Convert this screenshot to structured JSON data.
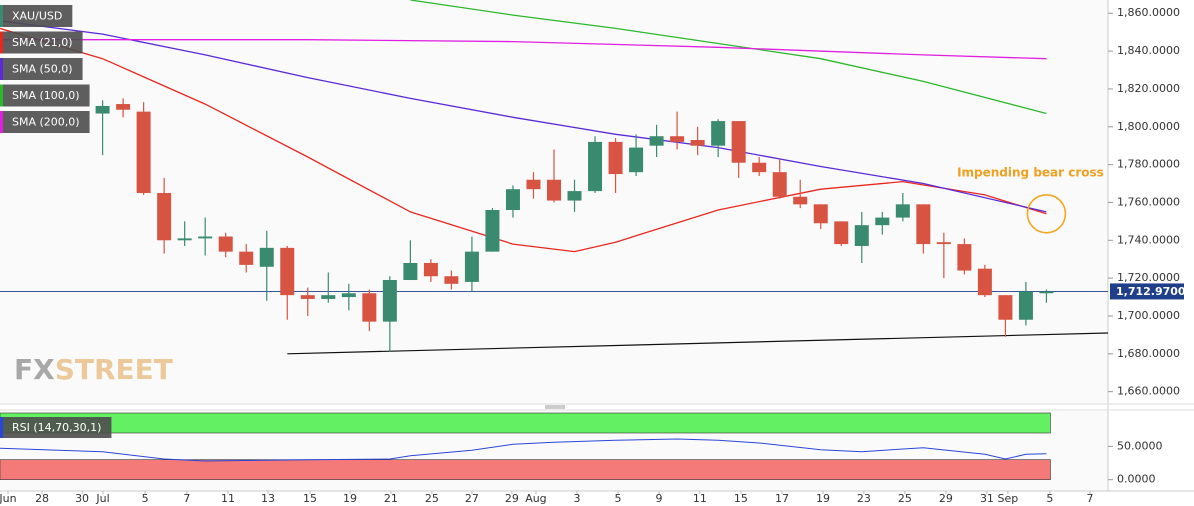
{
  "chart_data": [
    {
      "type": "candlestick",
      "title": "XAU/USD",
      "x": [
        0,
        1,
        2,
        3,
        4,
        5,
        6,
        7,
        8,
        9,
        10,
        11,
        12,
        13,
        14,
        15,
        16,
        17,
        18,
        19,
        20,
        21,
        22,
        23,
        24,
        25,
        26,
        27,
        28,
        29,
        30,
        31,
        32,
        33,
        34,
        35,
        36,
        37,
        38,
        39,
        40,
        41,
        42,
        43,
        44,
        45,
        46
      ],
      "open": [
        1807,
        1812,
        1808,
        1765,
        1740,
        1741,
        1742,
        1734,
        1726,
        1736,
        1711,
        1709,
        1710,
        1712,
        1697,
        1719,
        1728,
        1721,
        1718,
        1734,
        1756,
        1772,
        1772,
        1761,
        1766,
        1792,
        1776,
        1790,
        1795,
        1793,
        1790,
        1803,
        1781,
        1776,
        1763,
        1759,
        1750,
        1737,
        1748,
        1752,
        1759,
        1739,
        1738,
        1725,
        1711,
        1698,
        1712
      ],
      "high": [
        1814,
        1815,
        1813,
        1773,
        1750,
        1752,
        1744,
        1738,
        1745,
        1737,
        1715,
        1723,
        1717,
        1714,
        1721,
        1740,
        1730,
        1724,
        1742,
        1757,
        1769,
        1776,
        1788,
        1772,
        1795,
        1794,
        1796,
        1801,
        1808,
        1800,
        1804,
        1803,
        1784,
        1783,
        1772,
        1759,
        1750,
        1755,
        1755,
        1765,
        1759,
        1744,
        1741,
        1727,
        1711,
        1718,
        1714
      ],
      "low": [
        1785,
        1805,
        1764,
        1733,
        1737,
        1732,
        1731,
        1723,
        1708,
        1698,
        1700,
        1707,
        1703,
        1692,
        1681,
        1719,
        1718,
        1714,
        1713,
        1734,
        1752,
        1762,
        1760,
        1755,
        1765,
        1765,
        1774,
        1784,
        1788,
        1785,
        1784,
        1773,
        1774,
        1762,
        1757,
        1746,
        1737,
        1728,
        1743,
        1750,
        1733,
        1720,
        1722,
        1710,
        1689,
        1695,
        1707
      ],
      "close": [
        1811,
        1809,
        1765,
        1740,
        1741,
        1742,
        1734,
        1727,
        1736,
        1711,
        1709,
        1711,
        1712,
        1697,
        1719,
        1728,
        1721,
        1717,
        1734,
        1756,
        1767,
        1767,
        1761,
        1766,
        1792,
        1775,
        1789,
        1795,
        1792,
        1790,
        1803,
        1781,
        1776,
        1763,
        1759,
        1749,
        1738,
        1748,
        1752,
        1759,
        1738,
        1738,
        1724,
        1711,
        1698,
        1713,
        1713
      ],
      "up_color": "#3a8a70",
      "down_color": "#d75442",
      "series": [
        {
          "name": "SMA (21,0)",
          "color": "#e8281e",
          "x": [
            -5,
            0,
            5,
            10,
            15,
            20,
            23,
            25,
            30,
            35,
            39,
            43,
            46
          ],
          "values": [
            1852,
            1836,
            1812,
            1784,
            1755,
            1738,
            1734,
            1739,
            1756,
            1767,
            1771,
            1764,
            1754
          ]
        },
        {
          "name": "SMA (50,0)",
          "color": "#5a2ad8",
          "x": [
            -5,
            0,
            5,
            10,
            15,
            20,
            25,
            30,
            35,
            40,
            46
          ],
          "values": [
            1856,
            1849,
            1838,
            1826,
            1815,
            1805,
            1796,
            1789,
            1779,
            1770,
            1755
          ]
        },
        {
          "name": "SMA (100,0)",
          "color": "#2cb82c",
          "x": [
            15,
            20,
            25,
            30,
            35,
            40,
            46
          ],
          "values": [
            1867,
            1859,
            1852,
            1844,
            1836,
            1824,
            1807
          ]
        },
        {
          "name": "SMA (200,0)",
          "color": "#e020e0",
          "x": [
            -5,
            10,
            20,
            30,
            40,
            46
          ],
          "values": [
            1846,
            1846,
            1845,
            1842,
            1838,
            1836
          ]
        }
      ],
      "trendline": {
        "x": [
          9,
          49
        ],
        "values": [
          1680,
          1691
        ]
      },
      "last_price": {
        "value": 1712.97,
        "label": "1,712.9700"
      },
      "annotation": "Impending bear cross",
      "watermark": [
        "FX",
        "STREET"
      ],
      "xlim": [
        -5,
        49
      ],
      "ylim": [
        1654,
        1867
      ],
      "yticks": [
        {
          "value": 1660,
          "label": "1,660.0000"
        },
        {
          "value": 1680,
          "label": "1,680.0000"
        },
        {
          "value": 1700,
          "label": "1,700.0000"
        },
        {
          "value": 1720,
          "label": "1,720.0000"
        },
        {
          "value": 1740,
          "label": "1,740.0000"
        },
        {
          "value": 1760,
          "label": "1,760.0000"
        },
        {
          "value": 1780,
          "label": "1,780.0000"
        },
        {
          "value": 1800,
          "label": "1,800.0000"
        },
        {
          "value": 1820,
          "label": "1,820.0000"
        },
        {
          "value": 1840,
          "label": "1,840.0000"
        },
        {
          "value": 1860,
          "label": "1,860.0000"
        }
      ],
      "xticks": [
        {
          "value": -4.61,
          "label": "Jun"
        },
        {
          "value": -2.95,
          "label": "28"
        },
        {
          "value": -1.0,
          "label": "30"
        },
        {
          "value": 0.02,
          "label": "Jul"
        },
        {
          "value": 2.07,
          "label": "5"
        },
        {
          "value": 4.11,
          "label": "7"
        },
        {
          "value": 6.11,
          "label": "11"
        },
        {
          "value": 8.06,
          "label": "13"
        },
        {
          "value": 10.11,
          "label": "15"
        },
        {
          "value": 12.06,
          "label": "19"
        },
        {
          "value": 14.05,
          "label": "21"
        },
        {
          "value": 16.05,
          "label": "25"
        },
        {
          "value": 18,
          "label": "27"
        },
        {
          "value": 19.95,
          "label": "29"
        },
        {
          "value": 21.12,
          "label": "Aug"
        },
        {
          "value": 23.12,
          "label": "3"
        },
        {
          "value": 25.12,
          "label": "5"
        },
        {
          "value": 27.12,
          "label": "9"
        },
        {
          "value": 29.11,
          "label": "11"
        },
        {
          "value": 31.11,
          "label": "15"
        },
        {
          "value": 33.11,
          "label": "17"
        },
        {
          "value": 35.11,
          "label": "19"
        },
        {
          "value": 37.1,
          "label": "23"
        },
        {
          "value": 39.1,
          "label": "25"
        },
        {
          "value": 41.1,
          "label": "29"
        },
        {
          "value": 43.1,
          "label": "31"
        },
        {
          "value": 44.12,
          "label": "Sep"
        },
        {
          "value": 46.17,
          "label": "5"
        },
        {
          "value": 48.12,
          "label": "7"
        }
      ]
    },
    {
      "type": "line",
      "title": "RSI (14,70,30,1)",
      "series": [
        {
          "color": "#2a46d8",
          "x": [
            -5,
            0,
            3,
            5,
            10,
            14,
            15,
            18,
            20,
            22,
            25,
            28,
            30,
            32,
            35,
            37,
            40,
            43,
            44,
            45,
            46
          ],
          "values": [
            47,
            42,
            31,
            28,
            30,
            31,
            36,
            44,
            53,
            56,
            59,
            61,
            59,
            55,
            45,
            42,
            48,
            38,
            31,
            38,
            39
          ]
        }
      ],
      "bands": [
        {
          "from": 70,
          "to": 100,
          "color": "#63f063"
        },
        {
          "from": 0,
          "to": 30,
          "color": "#f47a7a"
        }
      ],
      "ylim": [
        -17,
        103
      ],
      "yticks": [
        {
          "value": 0,
          "label": "0.0000"
        },
        {
          "value": 50,
          "label": "50.0000"
        }
      ]
    }
  ]
}
